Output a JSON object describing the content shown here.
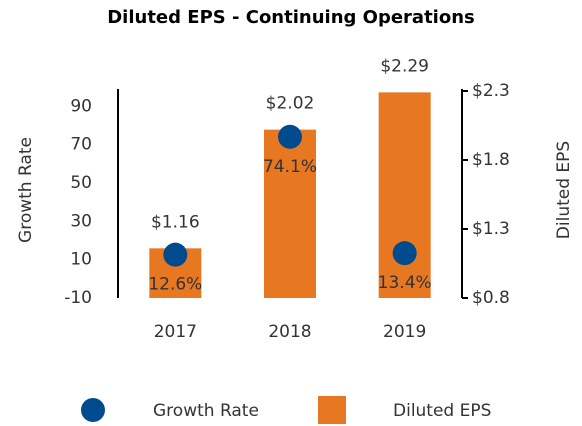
{
  "chart_data": {
    "type": "bar",
    "title": "Diluted EPS - Continuing Operations",
    "categories": [
      "2017",
      "2018",
      "2019"
    ],
    "ylabel": "Growth Rate",
    "y2label": "Diluted EPS",
    "ylim": [
      -10,
      98
    ],
    "yticks": [
      -10,
      10,
      30,
      50,
      70,
      90
    ],
    "y2lim": [
      0.8,
      2.3
    ],
    "y2ticks": [
      {
        "value": 0.8,
        "label": "$0.8"
      },
      {
        "value": 1.3,
        "label": "$1.3"
      },
      {
        "value": 1.8,
        "label": "$1.8"
      },
      {
        "value": 2.3,
        "label": "$2.3"
      }
    ],
    "series": [
      {
        "name": "Growth Rate",
        "type": "scatter",
        "color": "#004b8d",
        "values": [
          12.6,
          74.1,
          13.4
        ],
        "value_labels": [
          "12.6%",
          "74.1%",
          "13.4%"
        ]
      },
      {
        "name": "Diluted EPS",
        "type": "bar",
        "axis": "y2",
        "color": "#e87722",
        "values": [
          1.16,
          2.02,
          2.29
        ],
        "value_labels": [
          "$1.16",
          "$2.02",
          "$2.29"
        ]
      }
    ],
    "legend": "bottom"
  }
}
